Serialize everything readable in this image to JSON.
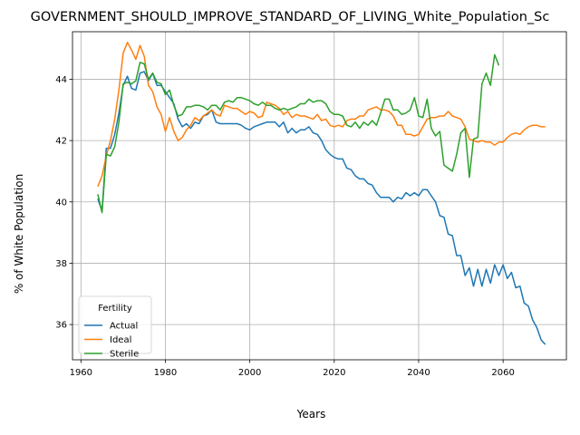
{
  "chart_data": {
    "type": "line",
    "title": "GOVERNMENT_SHOULD_IMPROVE_STANDARD_OF_LIVING_White_Population_Sc",
    "xlabel": "Years",
    "ylabel": "% of White Population",
    "xlim": [
      1958,
      2075
    ],
    "ylim": [
      34.85,
      45.55
    ],
    "xticks": [
      1960,
      1980,
      2000,
      2020,
      2040,
      2060
    ],
    "yticks": [
      36,
      38,
      40,
      42,
      44
    ],
    "grid": true,
    "legend": {
      "title": "Fertility",
      "placement": "lower-left"
    },
    "series": [
      {
        "name": "Actual",
        "color": "#1f77b4",
        "points": [
          [
            1964,
            40.1
          ],
          [
            1965,
            39.7
          ],
          [
            1966,
            41.75
          ],
          [
            1967,
            41.75
          ],
          [
            1968,
            42.2
          ],
          [
            1969,
            42.9
          ],
          [
            1970,
            43.8
          ],
          [
            1971,
            44.1
          ],
          [
            1972,
            43.7
          ],
          [
            1973,
            43.65
          ],
          [
            1974,
            44.2
          ],
          [
            1975,
            44.25
          ],
          [
            1976,
            43.95
          ],
          [
            1977,
            44.2
          ],
          [
            1978,
            43.8
          ],
          [
            1979,
            43.8
          ],
          [
            1980,
            43.6
          ],
          [
            1981,
            43.4
          ],
          [
            1982,
            43.2
          ],
          [
            1983,
            42.7
          ],
          [
            1984,
            42.45
          ],
          [
            1985,
            42.55
          ],
          [
            1986,
            42.4
          ],
          [
            1987,
            42.6
          ],
          [
            1988,
            42.55
          ],
          [
            1989,
            42.8
          ],
          [
            1990,
            42.85
          ],
          [
            1991,
            43.0
          ],
          [
            1992,
            42.6
          ],
          [
            1993,
            42.55
          ],
          [
            1994,
            42.55
          ],
          [
            1995,
            42.55
          ],
          [
            1996,
            42.55
          ],
          [
            1997,
            42.55
          ],
          [
            1998,
            42.5
          ],
          [
            1999,
            42.4
          ],
          [
            2000,
            42.35
          ],
          [
            2001,
            42.45
          ],
          [
            2002,
            42.5
          ],
          [
            2003,
            42.55
          ],
          [
            2004,
            42.6
          ],
          [
            2005,
            42.6
          ],
          [
            2006,
            42.6
          ],
          [
            2007,
            42.45
          ],
          [
            2008,
            42.6
          ],
          [
            2009,
            42.25
          ],
          [
            2010,
            42.4
          ],
          [
            2011,
            42.25
          ],
          [
            2012,
            42.35
          ],
          [
            2013,
            42.35
          ],
          [
            2014,
            42.45
          ],
          [
            2015,
            42.25
          ],
          [
            2016,
            42.2
          ],
          [
            2017,
            42.0
          ],
          [
            2018,
            41.7
          ],
          [
            2019,
            41.55
          ],
          [
            2020,
            41.45
          ],
          [
            2021,
            41.4
          ],
          [
            2022,
            41.4
          ],
          [
            2023,
            41.1
          ],
          [
            2024,
            41.05
          ],
          [
            2025,
            40.85
          ],
          [
            2026,
            40.75
          ],
          [
            2027,
            40.75
          ],
          [
            2028,
            40.6
          ],
          [
            2029,
            40.55
          ],
          [
            2030,
            40.3
          ],
          [
            2031,
            40.15
          ],
          [
            2032,
            40.15
          ],
          [
            2033,
            40.15
          ],
          [
            2034,
            40.0
          ],
          [
            2035,
            40.15
          ],
          [
            2036,
            40.1
          ],
          [
            2037,
            40.3
          ],
          [
            2038,
            40.2
          ],
          [
            2039,
            40.3
          ],
          [
            2040,
            40.2
          ],
          [
            2041,
            40.4
          ],
          [
            2042,
            40.4
          ],
          [
            2043,
            40.2
          ],
          [
            2044,
            40.0
          ],
          [
            2045,
            39.55
          ],
          [
            2046,
            39.5
          ],
          [
            2047,
            38.95
          ],
          [
            2048,
            38.9
          ],
          [
            2049,
            38.25
          ],
          [
            2050,
            38.25
          ],
          [
            2051,
            37.6
          ],
          [
            2052,
            37.85
          ],
          [
            2053,
            37.25
          ],
          [
            2054,
            37.8
          ],
          [
            2055,
            37.25
          ],
          [
            2056,
            37.8
          ],
          [
            2057,
            37.35
          ],
          [
            2058,
            37.95
          ],
          [
            2059,
            37.6
          ],
          [
            2060,
            37.95
          ],
          [
            2061,
            37.5
          ],
          [
            2062,
            37.7
          ],
          [
            2063,
            37.2
          ],
          [
            2064,
            37.25
          ],
          [
            2065,
            36.7
          ],
          [
            2066,
            36.6
          ],
          [
            2067,
            36.15
          ],
          [
            2068,
            35.9
          ],
          [
            2069,
            35.5
          ],
          [
            2070,
            35.35
          ]
        ]
      },
      {
        "name": "Ideal",
        "color": "#ff7f0e",
        "points": [
          [
            1964,
            40.5
          ],
          [
            1965,
            40.85
          ],
          [
            1966,
            41.5
          ],
          [
            1967,
            42.0
          ],
          [
            1968,
            42.7
          ],
          [
            1969,
            43.65
          ],
          [
            1970,
            44.85
          ],
          [
            1971,
            45.2
          ],
          [
            1972,
            44.95
          ],
          [
            1973,
            44.65
          ],
          [
            1974,
            45.1
          ],
          [
            1975,
            44.75
          ],
          [
            1976,
            43.8
          ],
          [
            1977,
            43.6
          ],
          [
            1978,
            43.1
          ],
          [
            1979,
            42.85
          ],
          [
            1980,
            42.3
          ],
          [
            1981,
            42.75
          ],
          [
            1982,
            42.3
          ],
          [
            1983,
            42.0
          ],
          [
            1984,
            42.1
          ],
          [
            1985,
            42.35
          ],
          [
            1986,
            42.5
          ],
          [
            1987,
            42.75
          ],
          [
            1988,
            42.65
          ],
          [
            1989,
            42.8
          ],
          [
            1990,
            42.9
          ],
          [
            1991,
            43.0
          ],
          [
            1992,
            42.85
          ],
          [
            1993,
            42.8
          ],
          [
            1994,
            43.15
          ],
          [
            1995,
            43.1
          ],
          [
            1996,
            43.05
          ],
          [
            1997,
            43.05
          ],
          [
            1998,
            42.95
          ],
          [
            1999,
            42.85
          ],
          [
            2000,
            42.95
          ],
          [
            2001,
            42.9
          ],
          [
            2002,
            42.75
          ],
          [
            2003,
            42.8
          ],
          [
            2004,
            43.25
          ],
          [
            2005,
            43.2
          ],
          [
            2006,
            43.15
          ],
          [
            2007,
            43.05
          ],
          [
            2008,
            42.85
          ],
          [
            2009,
            42.95
          ],
          [
            2010,
            42.75
          ],
          [
            2011,
            42.85
          ],
          [
            2012,
            42.8
          ],
          [
            2013,
            42.8
          ],
          [
            2014,
            42.75
          ],
          [
            2015,
            42.7
          ],
          [
            2016,
            42.85
          ],
          [
            2017,
            42.65
          ],
          [
            2018,
            42.7
          ],
          [
            2019,
            42.5
          ],
          [
            2020,
            42.45
          ],
          [
            2021,
            42.5
          ],
          [
            2022,
            42.45
          ],
          [
            2023,
            42.65
          ],
          [
            2024,
            42.7
          ],
          [
            2025,
            42.7
          ],
          [
            2026,
            42.8
          ],
          [
            2027,
            42.8
          ],
          [
            2028,
            43.0
          ],
          [
            2029,
            43.05
          ],
          [
            2030,
            43.1
          ],
          [
            2031,
            43.0
          ],
          [
            2032,
            43.0
          ],
          [
            2033,
            42.95
          ],
          [
            2034,
            42.8
          ],
          [
            2035,
            42.5
          ],
          [
            2036,
            42.5
          ],
          [
            2037,
            42.2
          ],
          [
            2038,
            42.2
          ],
          [
            2039,
            42.15
          ],
          [
            2040,
            42.2
          ],
          [
            2041,
            42.45
          ],
          [
            2042,
            42.7
          ],
          [
            2043,
            42.75
          ],
          [
            2044,
            42.75
          ],
          [
            2045,
            42.8
          ],
          [
            2046,
            42.8
          ],
          [
            2047,
            42.95
          ],
          [
            2048,
            42.8
          ],
          [
            2049,
            42.75
          ],
          [
            2050,
            42.7
          ],
          [
            2051,
            42.45
          ],
          [
            2052,
            42.05
          ],
          [
            2053,
            42.0
          ],
          [
            2054,
            41.95
          ],
          [
            2055,
            42.0
          ],
          [
            2056,
            41.95
          ],
          [
            2057,
            41.95
          ],
          [
            2058,
            41.85
          ],
          [
            2059,
            41.95
          ],
          [
            2060,
            41.95
          ],
          [
            2061,
            42.1
          ],
          [
            2062,
            42.2
          ],
          [
            2063,
            42.25
          ],
          [
            2064,
            42.2
          ],
          [
            2065,
            42.35
          ],
          [
            2066,
            42.45
          ],
          [
            2067,
            42.5
          ],
          [
            2068,
            42.5
          ],
          [
            2069,
            42.45
          ],
          [
            2070,
            42.45
          ]
        ]
      },
      {
        "name": "Sterile",
        "color": "#2ca02c",
        "points": [
          [
            1964,
            40.25
          ],
          [
            1965,
            39.65
          ],
          [
            1966,
            41.55
          ],
          [
            1967,
            41.5
          ],
          [
            1968,
            41.8
          ],
          [
            1969,
            42.6
          ],
          [
            1970,
            43.85
          ],
          [
            1971,
            43.9
          ],
          [
            1972,
            43.85
          ],
          [
            1973,
            43.95
          ],
          [
            1974,
            44.55
          ],
          [
            1975,
            44.5
          ],
          [
            1976,
            44.0
          ],
          [
            1977,
            44.2
          ],
          [
            1978,
            43.9
          ],
          [
            1979,
            43.85
          ],
          [
            1980,
            43.5
          ],
          [
            1981,
            43.65
          ],
          [
            1982,
            43.15
          ],
          [
            1983,
            42.8
          ],
          [
            1984,
            42.85
          ],
          [
            1985,
            43.1
          ],
          [
            1986,
            43.1
          ],
          [
            1987,
            43.15
          ],
          [
            1988,
            43.15
          ],
          [
            1989,
            43.1
          ],
          [
            1990,
            43.0
          ],
          [
            1991,
            43.15
          ],
          [
            1992,
            43.15
          ],
          [
            1993,
            43.0
          ],
          [
            1994,
            43.25
          ],
          [
            1995,
            43.3
          ],
          [
            1996,
            43.25
          ],
          [
            1997,
            43.4
          ],
          [
            1998,
            43.4
          ],
          [
            1999,
            43.35
          ],
          [
            2000,
            43.3
          ],
          [
            2001,
            43.2
          ],
          [
            2002,
            43.15
          ],
          [
            2003,
            43.25
          ],
          [
            2004,
            43.15
          ],
          [
            2005,
            43.15
          ],
          [
            2006,
            43.05
          ],
          [
            2007,
            43.0
          ],
          [
            2008,
            43.05
          ],
          [
            2009,
            43.0
          ],
          [
            2010,
            43.05
          ],
          [
            2011,
            43.1
          ],
          [
            2012,
            43.2
          ],
          [
            2013,
            43.2
          ],
          [
            2014,
            43.35
          ],
          [
            2015,
            43.25
          ],
          [
            2016,
            43.3
          ],
          [
            2017,
            43.3
          ],
          [
            2018,
            43.2
          ],
          [
            2019,
            42.95
          ],
          [
            2020,
            42.85
          ],
          [
            2021,
            42.85
          ],
          [
            2022,
            42.8
          ],
          [
            2023,
            42.5
          ],
          [
            2024,
            42.45
          ],
          [
            2025,
            42.6
          ],
          [
            2026,
            42.4
          ],
          [
            2027,
            42.6
          ],
          [
            2028,
            42.5
          ],
          [
            2029,
            42.65
          ],
          [
            2030,
            42.5
          ],
          [
            2031,
            42.9
          ],
          [
            2032,
            43.35
          ],
          [
            2033,
            43.35
          ],
          [
            2034,
            43.0
          ],
          [
            2035,
            43.0
          ],
          [
            2036,
            42.85
          ],
          [
            2037,
            42.9
          ],
          [
            2038,
            43.0
          ],
          [
            2039,
            43.4
          ],
          [
            2040,
            42.8
          ],
          [
            2041,
            42.75
          ],
          [
            2042,
            43.35
          ],
          [
            2043,
            42.4
          ],
          [
            2044,
            42.15
          ],
          [
            2045,
            42.3
          ],
          [
            2046,
            41.2
          ],
          [
            2047,
            41.1
          ],
          [
            2048,
            41.0
          ],
          [
            2049,
            41.55
          ],
          [
            2050,
            42.25
          ],
          [
            2051,
            42.4
          ],
          [
            2052,
            40.8
          ],
          [
            2053,
            42.05
          ],
          [
            2054,
            42.1
          ],
          [
            2055,
            43.85
          ],
          [
            2056,
            44.2
          ],
          [
            2057,
            43.8
          ],
          [
            2058,
            44.8
          ],
          [
            2059,
            44.45
          ]
        ]
      }
    ]
  }
}
